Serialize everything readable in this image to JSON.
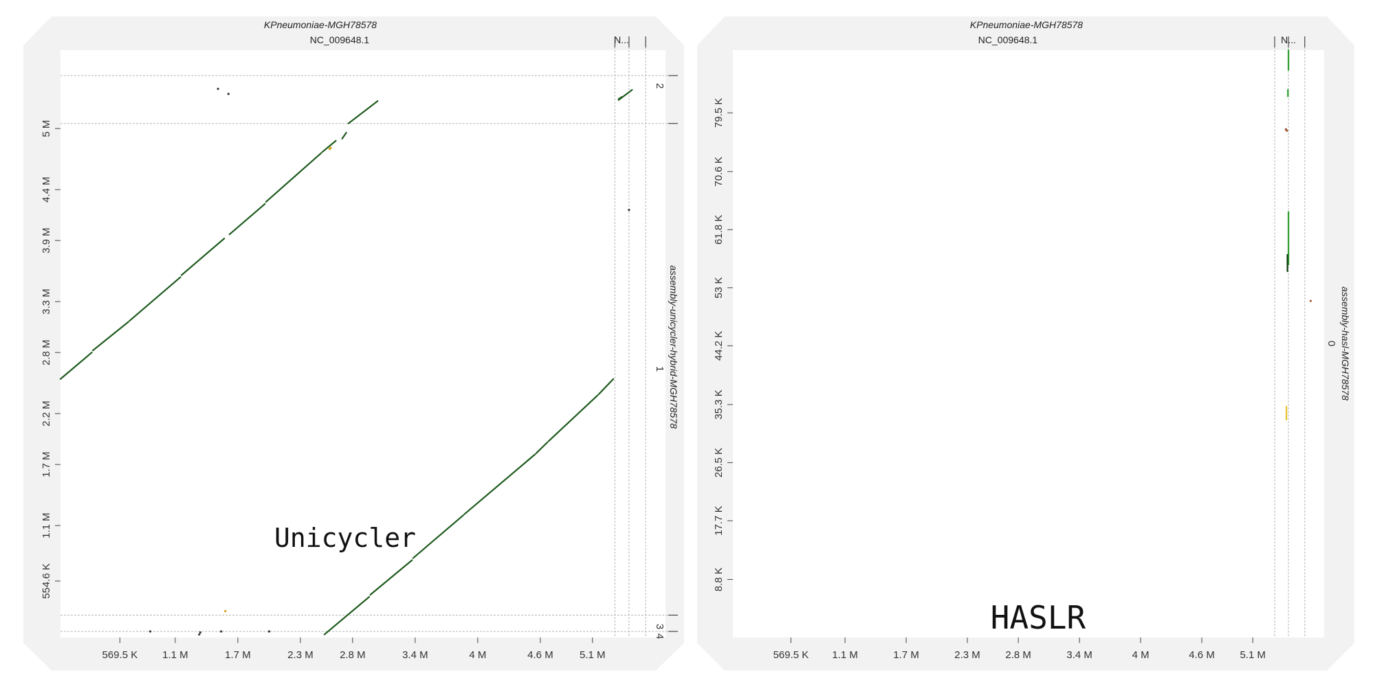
{
  "chart_data": [
    {
      "type": "scatter",
      "subtype": "dotplot",
      "panel": "left",
      "title": "KPneumoniae-MGH78578",
      "subtitle": "NC_009648.1",
      "top_segments": [
        "N...",
        "",
        ""
      ],
      "ylabel": "assembly-unicycler-hybrid-MGH78578",
      "right_segments": [
        "2",
        "1",
        "3",
        "4"
      ],
      "annotation": "Unicycler",
      "x_ticks": [
        "569.5 K",
        "1.1 M",
        "1.7 M",
        "2.3 M",
        "2.8 M",
        "3.4 M",
        "4 M",
        "4.6 M",
        "5.1 M"
      ],
      "y_ticks": [
        "554.6 K",
        "1.1 M",
        "1.7 M",
        "2.2 M",
        "2.8 M",
        "3.3 M",
        "3.9 M",
        "4.4 M",
        "5 M"
      ],
      "xlim": [
        0,
        5800000
      ],
      "ylim": [
        0,
        5770000
      ],
      "ref_boundaries": [
        5315000,
        5450000,
        5610000
      ],
      "query_boundaries": [
        60000,
        220000,
        5050000,
        5520000
      ],
      "series": [
        {
          "color": "#1d5a1d",
          "segments": [
            [
              [
                0,
                2540000
              ],
              [
                300000,
                2800000
              ]
            ],
            [
              [
                310000,
                2820000
              ],
              [
                650000,
                3100000
              ]
            ],
            [
              [
                660000,
                3110000
              ],
              [
                1150000,
                3540000
              ]
            ],
            [
              [
                1160000,
                3560000
              ],
              [
                1570000,
                3920000
              ]
            ],
            [
              [
                1620000,
                3960000
              ],
              [
                1960000,
                4260000
              ]
            ],
            [
              [
                1970000,
                4280000
              ],
              [
                2500000,
                4760000
              ]
            ],
            [
              [
                2510000,
                4770000
              ],
              [
                2640000,
                4880000
              ]
            ],
            [
              [
                2700000,
                4900000
              ],
              [
                2740000,
                4960000
              ]
            ],
            [
              [
                2760000,
                5050000
              ],
              [
                3040000,
                5270000
              ]
            ],
            [
              [
                2530000,
                30000
              ],
              [
                2960000,
                400000
              ]
            ],
            [
              [
                2970000,
                420000
              ],
              [
                3370000,
                760000
              ]
            ],
            [
              [
                3380000,
                780000
              ],
              [
                3860000,
                1200000
              ]
            ],
            [
              [
                3870000,
                1210000
              ],
              [
                4550000,
                1800000
              ]
            ],
            [
              [
                4560000,
                1810000
              ],
              [
                4670000,
                1920000
              ]
            ],
            [
              [
                4680000,
                1930000
              ],
              [
                5150000,
                2380000
              ]
            ],
            [
              [
                5160000,
                2390000
              ],
              [
                5300000,
                2540000
              ]
            ],
            [
              [
                5350000,
                5280000
              ],
              [
                5480000,
                5380000
              ]
            ],
            [
              [
                5350000,
                5290000
              ],
              [
                5380000,
                5310000
              ]
            ]
          ]
        },
        {
          "color": "#333333",
          "points": [
            [
              1330000,
              30000
            ],
            [
              1340000,
              50000
            ],
            [
              860000,
              60000
            ],
            [
              1540000,
              60000
            ],
            [
              2000000,
              60000
            ],
            [
              5450000,
              4200000
            ],
            [
              1610000,
              5340000
            ],
            [
              1510000,
              5390000
            ]
          ]
        },
        {
          "color": "#d4a017",
          "points": [
            [
              1580000,
              260000
            ],
            [
              2580000,
              4800000
            ],
            [
              2590000,
              4810000
            ]
          ]
        }
      ]
    },
    {
      "type": "scatter",
      "subtype": "dotplot",
      "panel": "right",
      "title": "KPneumoniae-MGH78578",
      "subtitle": "NC_009648.1",
      "top_segments": [
        "N...",
        "",
        ""
      ],
      "ylabel": "assembly-hasl-MGH78578",
      "right_segments": [
        "0"
      ],
      "annotation": "HASLR",
      "x_ticks": [
        "569.5 K",
        "1.1 M",
        "1.7 M",
        "2.3 M",
        "2.8 M",
        "3.4 M",
        "4 M",
        "4.6 M",
        "5.1 M"
      ],
      "y_ticks": [
        "8.8 K",
        "17.7 K",
        "26.5 K",
        "35.3 K",
        "44.2 K",
        "53 K",
        "61.8 K",
        "70.6 K",
        "79.5 K"
      ],
      "xlim": [
        0,
        5800000
      ],
      "ylim": [
        0,
        89000
      ],
      "ref_boundaries": [
        5315000,
        5450000,
        5610000
      ],
      "query_boundaries": [],
      "series": [
        {
          "color": "#2a9a2a",
          "segments": [
            [
              [
                5450000,
                86000
              ],
              [
                5450000,
                89000
              ]
            ],
            [
              [
                5445000,
                82000
              ],
              [
                5445000,
                83000
              ]
            ],
            [
              [
                5450000,
                56500
              ],
              [
                5450000,
                64500
              ]
            ]
          ]
        },
        {
          "color": "#0f3d0f",
          "segments": [
            [
              [
                5440000,
                55500
              ],
              [
                5440000,
                58000
              ]
            ]
          ]
        },
        {
          "color": "#e6c229",
          "segments": [
            [
              [
                5430000,
                33000
              ],
              [
                5430000,
                35000
              ]
            ]
          ]
        },
        {
          "color": "#a0522d",
          "points": [
            [
              5425000,
              77000
            ],
            [
              5435000,
              76800
            ],
            [
              5668000,
              51000
            ]
          ]
        }
      ]
    }
  ]
}
